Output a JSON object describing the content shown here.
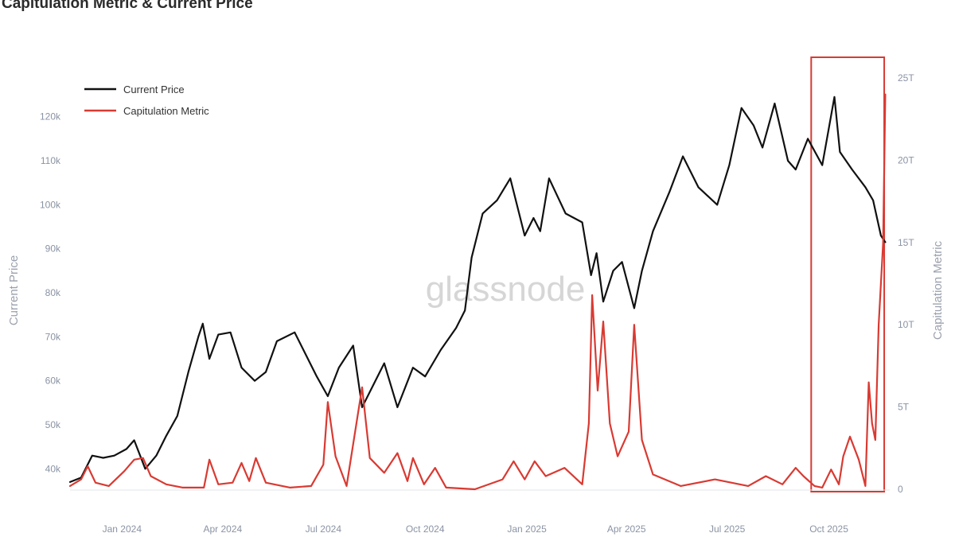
{
  "page": {
    "title": "Capitulation Metric & Current Price",
    "watermark": "glassnode"
  },
  "chart_data": {
    "type": "line",
    "title": "Capitulation Metric & Current Price",
    "legend_position": "top-left",
    "grid": false,
    "highlight_box": {
      "x_range": [
        "2025-09-15",
        "2025-11-20"
      ],
      "color": "#d93a32"
    },
    "x_axis": {
      "type": "date",
      "range": [
        "2023-11-15",
        "2025-11-25"
      ],
      "ticks": [
        {
          "value": "2024-01-01",
          "label": "Jan 2024"
        },
        {
          "value": "2024-04-01",
          "label": "Apr 2024"
        },
        {
          "value": "2024-07-01",
          "label": "Jul 2024"
        },
        {
          "value": "2024-10-01",
          "label": "Oct 2024"
        },
        {
          "value": "2025-01-01",
          "label": "Jan 2025"
        },
        {
          "value": "2025-04-01",
          "label": "Apr 2025"
        },
        {
          "value": "2025-07-01",
          "label": "Jul 2025"
        },
        {
          "value": "2025-10-01",
          "label": "Oct 2025"
        }
      ]
    },
    "y_left": {
      "label": "Current Price",
      "range": [
        35000,
        127000
      ],
      "ticks": [
        {
          "value": 40000,
          "label": "40k"
        },
        {
          "value": 50000,
          "label": "50k"
        },
        {
          "value": 60000,
          "label": "60k"
        },
        {
          "value": 70000,
          "label": "70k"
        },
        {
          "value": 80000,
          "label": "80k"
        },
        {
          "value": 90000,
          "label": "90k"
        },
        {
          "value": 100000,
          "label": "100k"
        },
        {
          "value": 110000,
          "label": "110k"
        },
        {
          "value": 120000,
          "label": "120k"
        }
      ]
    },
    "y_right": {
      "label": "Capitulation Metric",
      "range": [
        0,
        25000000000000
      ],
      "ticks": [
        {
          "value": 0,
          "label": "0"
        },
        {
          "value": 5000000000000,
          "label": "5T"
        },
        {
          "value": 10000000000000,
          "label": "10T"
        },
        {
          "value": 15000000000000,
          "label": "15T"
        },
        {
          "value": 20000000000000,
          "label": "20T"
        },
        {
          "value": 25000000000000,
          "label": "25T"
        }
      ]
    },
    "series": [
      {
        "name": "Current Price",
        "axis": "left",
        "color": "#111111",
        "points": [
          [
            "2023-11-15",
            37000
          ],
          [
            "2023-11-25",
            38000
          ],
          [
            "2023-12-05",
            43000
          ],
          [
            "2023-12-15",
            42500
          ],
          [
            "2023-12-25",
            43000
          ],
          [
            "2024-01-05",
            44500
          ],
          [
            "2024-01-12",
            46500
          ],
          [
            "2024-01-22",
            40000
          ],
          [
            "2024-02-01",
            43000
          ],
          [
            "2024-02-10",
            47500
          ],
          [
            "2024-02-20",
            52000
          ],
          [
            "2024-03-01",
            62000
          ],
          [
            "2024-03-10",
            70000
          ],
          [
            "2024-03-14",
            73000
          ],
          [
            "2024-03-20",
            65000
          ],
          [
            "2024-03-28",
            70500
          ],
          [
            "2024-04-08",
            71000
          ],
          [
            "2024-04-18",
            63000
          ],
          [
            "2024-04-30",
            60000
          ],
          [
            "2024-05-10",
            62000
          ],
          [
            "2024-05-20",
            69000
          ],
          [
            "2024-06-05",
            71000
          ],
          [
            "2024-06-15",
            66000
          ],
          [
            "2024-06-25",
            61000
          ],
          [
            "2024-07-05",
            56500
          ],
          [
            "2024-07-15",
            63000
          ],
          [
            "2024-07-28",
            68000
          ],
          [
            "2024-08-05",
            54000
          ],
          [
            "2024-08-15",
            59000
          ],
          [
            "2024-08-25",
            64000
          ],
          [
            "2024-09-06",
            54000
          ],
          [
            "2024-09-20",
            63000
          ],
          [
            "2024-10-01",
            61000
          ],
          [
            "2024-10-15",
            67000
          ],
          [
            "2024-10-29",
            72000
          ],
          [
            "2024-11-06",
            76000
          ],
          [
            "2024-11-12",
            88000
          ],
          [
            "2024-11-22",
            98000
          ],
          [
            "2024-12-05",
            101000
          ],
          [
            "2024-12-17",
            106000
          ],
          [
            "2024-12-30",
            93000
          ],
          [
            "2025-01-07",
            97000
          ],
          [
            "2025-01-13",
            94000
          ],
          [
            "2025-01-21",
            106000
          ],
          [
            "2025-02-05",
            98000
          ],
          [
            "2025-02-20",
            96000
          ],
          [
            "2025-02-28",
            84000
          ],
          [
            "2025-03-05",
            89000
          ],
          [
            "2025-03-11",
            78000
          ],
          [
            "2025-03-20",
            85000
          ],
          [
            "2025-03-28",
            87000
          ],
          [
            "2025-04-08",
            76500
          ],
          [
            "2025-04-15",
            85000
          ],
          [
            "2025-04-25",
            94000
          ],
          [
            "2025-05-10",
            103000
          ],
          [
            "2025-05-22",
            111000
          ],
          [
            "2025-06-05",
            104000
          ],
          [
            "2025-06-22",
            100000
          ],
          [
            "2025-07-03",
            109000
          ],
          [
            "2025-07-14",
            122000
          ],
          [
            "2025-07-25",
            118000
          ],
          [
            "2025-08-02",
            113000
          ],
          [
            "2025-08-13",
            123000
          ],
          [
            "2025-08-25",
            110000
          ],
          [
            "2025-09-01",
            108000
          ],
          [
            "2025-09-12",
            115000
          ],
          [
            "2025-09-25",
            109000
          ],
          [
            "2025-10-06",
            124500
          ],
          [
            "2025-10-11",
            112000
          ],
          [
            "2025-10-22",
            108000
          ],
          [
            "2025-11-03",
            104000
          ],
          [
            "2025-11-10",
            101000
          ],
          [
            "2025-11-17",
            93000
          ],
          [
            "2025-11-21",
            91500
          ]
        ]
      },
      {
        "name": "Capitulation Metric",
        "axis": "right",
        "color": "#d93a32",
        "points": [
          [
            "2023-11-15",
            200000000000
          ],
          [
            "2023-11-25",
            600000000000
          ],
          [
            "2023-12-01",
            1400000000000
          ],
          [
            "2023-12-08",
            400000000000
          ],
          [
            "2023-12-20",
            200000000000
          ],
          [
            "2024-01-03",
            1100000000000
          ],
          [
            "2024-01-12",
            1800000000000
          ],
          [
            "2024-01-20",
            1900000000000
          ],
          [
            "2024-01-27",
            800000000000
          ],
          [
            "2024-02-10",
            300000000000
          ],
          [
            "2024-02-25",
            100000000000
          ],
          [
            "2024-03-15",
            100000000000
          ],
          [
            "2024-03-20",
            1800000000000
          ],
          [
            "2024-03-28",
            300000000000
          ],
          [
            "2024-04-10",
            400000000000
          ],
          [
            "2024-04-18",
            1600000000000
          ],
          [
            "2024-04-25",
            500000000000
          ],
          [
            "2024-05-01",
            1900000000000
          ],
          [
            "2024-05-10",
            400000000000
          ],
          [
            "2024-06-01",
            100000000000
          ],
          [
            "2024-06-20",
            200000000000
          ],
          [
            "2024-07-01",
            1500000000000
          ],
          [
            "2024-07-05",
            5300000000000
          ],
          [
            "2024-07-12",
            2000000000000
          ],
          [
            "2024-07-22",
            200000000000
          ],
          [
            "2024-08-05",
            6200000000000
          ],
          [
            "2024-08-12",
            1900000000000
          ],
          [
            "2024-08-25",
            1000000000000
          ],
          [
            "2024-09-06",
            2200000000000
          ],
          [
            "2024-09-15",
            500000000000
          ],
          [
            "2024-09-20",
            1900000000000
          ],
          [
            "2024-09-30",
            300000000000
          ],
          [
            "2024-10-10",
            1300000000000
          ],
          [
            "2024-10-20",
            100000000000
          ],
          [
            "2024-11-15",
            0
          ],
          [
            "2024-12-10",
            600000000000
          ],
          [
            "2024-12-20",
            1700000000000
          ],
          [
            "2024-12-30",
            600000000000
          ],
          [
            "2025-01-08",
            1700000000000
          ],
          [
            "2025-01-18",
            800000000000
          ],
          [
            "2025-02-04",
            1300000000000
          ],
          [
            "2025-02-20",
            300000000000
          ],
          [
            "2025-02-26",
            4000000000000
          ],
          [
            "2025-03-01",
            11800000000000
          ],
          [
            "2025-03-06",
            6000000000000
          ],
          [
            "2025-03-11",
            10200000000000
          ],
          [
            "2025-03-17",
            4000000000000
          ],
          [
            "2025-03-24",
            2000000000000
          ],
          [
            "2025-04-03",
            3500000000000
          ],
          [
            "2025-04-08",
            10000000000000
          ],
          [
            "2025-04-15",
            3000000000000
          ],
          [
            "2025-04-25",
            900000000000
          ],
          [
            "2025-05-20",
            200000000000
          ],
          [
            "2025-06-20",
            600000000000
          ],
          [
            "2025-07-20",
            200000000000
          ],
          [
            "2025-08-05",
            800000000000
          ],
          [
            "2025-08-20",
            300000000000
          ],
          [
            "2025-09-01",
            1300000000000
          ],
          [
            "2025-09-08",
            800000000000
          ],
          [
            "2025-09-18",
            200000000000
          ],
          [
            "2025-09-25",
            100000000000
          ],
          [
            "2025-10-03",
            1200000000000
          ],
          [
            "2025-10-10",
            300000000000
          ],
          [
            "2025-10-14",
            2000000000000
          ],
          [
            "2025-10-20",
            3200000000000
          ],
          [
            "2025-10-28",
            1800000000000
          ],
          [
            "2025-11-03",
            200000000000
          ],
          [
            "2025-11-06",
            6500000000000
          ],
          [
            "2025-11-09",
            4000000000000
          ],
          [
            "2025-11-12",
            3000000000000
          ],
          [
            "2025-11-15",
            10000000000000
          ],
          [
            "2025-11-19",
            15000000000000
          ],
          [
            "2025-11-21",
            24000000000000
          ]
        ]
      }
    ]
  }
}
